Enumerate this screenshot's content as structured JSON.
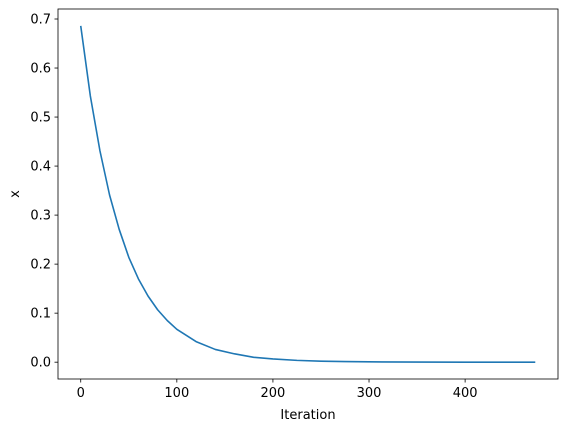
{
  "chart_data": {
    "type": "line",
    "title": "",
    "xlabel": "Iteration",
    "ylabel": "x",
    "xlim": [
      -23.65,
      496.65
    ],
    "ylim": [
      -0.0343,
      0.7204
    ],
    "xticks": [
      0,
      100,
      200,
      300,
      400
    ],
    "xtick_labels": [
      "0",
      "100",
      "200",
      "300",
      "400"
    ],
    "yticks": [
      0.0,
      0.1,
      0.2,
      0.3,
      0.4,
      0.5,
      0.6,
      0.7
    ],
    "ytick_labels": [
      "0.0",
      "0.1",
      "0.2",
      "0.3",
      "0.4",
      "0.5",
      "0.6",
      "0.7"
    ],
    "grid": false,
    "series": [
      {
        "color": "#1f77b4",
        "x": [
          0,
          10,
          20,
          30,
          40,
          50,
          60,
          70,
          80,
          90,
          100,
          120,
          140,
          160,
          180,
          200,
          225,
          250,
          275,
          300,
          350,
          400,
          450,
          473
        ],
        "y": [
          0.686,
          0.543,
          0.431,
          0.341,
          0.271,
          0.214,
          0.17,
          0.135,
          0.107,
          0.085,
          0.067,
          0.042,
          0.026,
          0.017,
          0.01,
          0.0066,
          0.0037,
          0.0021,
          0.0012,
          0.0007,
          0.0002,
          0.0001,
          0.0,
          0.0
        ]
      }
    ]
  }
}
